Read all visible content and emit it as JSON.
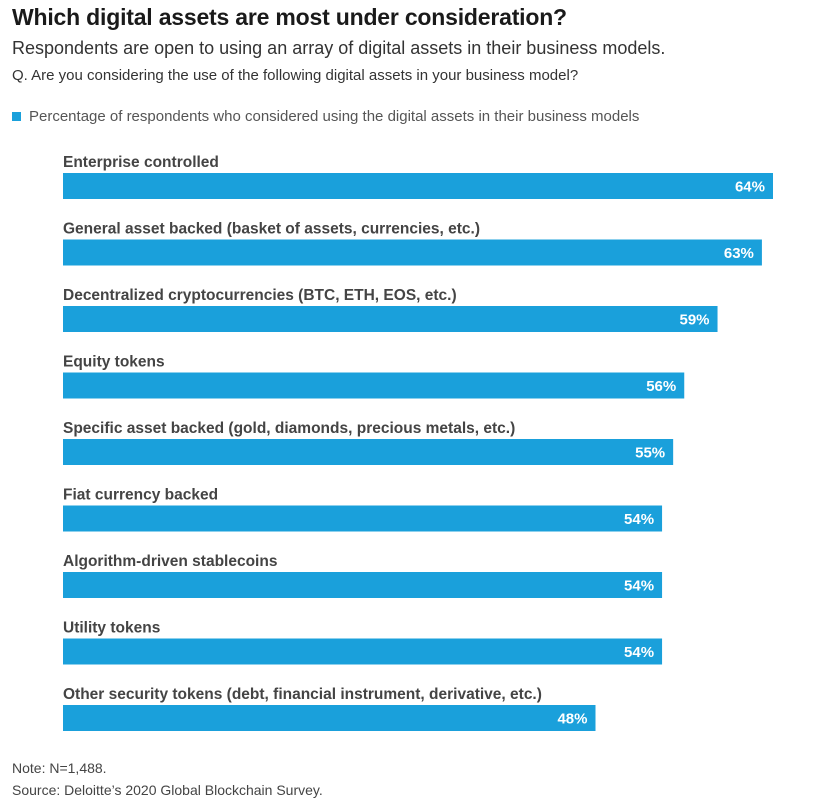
{
  "header": {
    "title": "Which digital assets are most under consideration?",
    "subtitle": "Respondents are open to using an array of digital assets in their business models.",
    "question": "Q.  Are you considering the use of the following digital assets in your business model?"
  },
  "legend": {
    "label": "Percentage of respondents who considered using the digital assets in their business models",
    "color": "#1aa0db"
  },
  "footer": {
    "note": "Note: N=1,488.",
    "source": "Source: Deloitte’s 2020 Global Blockchain Survey."
  },
  "chart_data": {
    "type": "bar",
    "orientation": "horizontal",
    "bar_color": "#1aa0db",
    "value_label_color": "#ffffff",
    "value_suffix": "%",
    "xlim": [
      0,
      64
    ],
    "grid": false,
    "legend_placement": "top-left",
    "categories": [
      "Enterprise controlled",
      "General asset backed (basket of assets, currencies, etc.)",
      "Decentralized cryptocurrencies (BTC, ETH, EOS, etc.)",
      "Equity tokens",
      "Specific asset backed (gold, diamonds, precious metals, etc.)",
      "Fiat currency backed",
      "Algorithm-driven stablecoins",
      "Utility tokens",
      "Other security tokens (debt, financial instrument, derivative, etc.)"
    ],
    "series": [
      {
        "name": "Percentage of respondents who considered using the digital assets in their business models",
        "values": [
          64,
          63,
          59,
          56,
          55,
          54,
          54,
          54,
          48
        ]
      }
    ]
  }
}
